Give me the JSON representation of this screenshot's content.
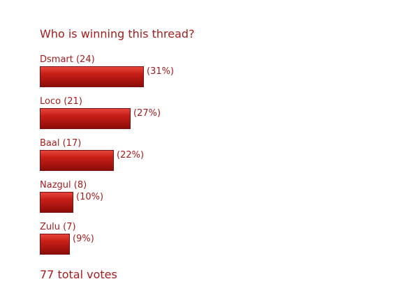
{
  "poll": {
    "title": "Who is winning this thread?",
    "total_votes_label": "77 total votes",
    "options": [
      {
        "label": "Dsmart (24)",
        "percent_label": "(31%)",
        "share": 31
      },
      {
        "label": "Loco (21)",
        "percent_label": "(27%)",
        "share": 27
      },
      {
        "label": "Baal (17)",
        "percent_label": "(22%)",
        "share": 22
      },
      {
        "label": "Nazgul (8)",
        "percent_label": "(10%)",
        "share": 10
      },
      {
        "label": "Zulu (7)",
        "percent_label": "(9%)",
        "share": 9
      }
    ],
    "colors": {
      "text": "#a61c1c",
      "bar": "#c61f17"
    }
  }
}
